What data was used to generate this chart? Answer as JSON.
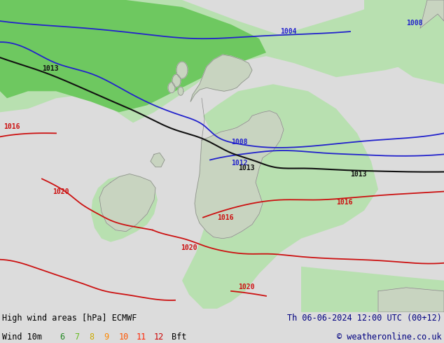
{
  "title_left": "High wind areas [hPa] ECMWF",
  "title_right": "Th 06-06-2024 12:00 UTC (00+12)",
  "subtitle_left": "Wind 10m",
  "subtitle_right": "© weatheronline.co.uk",
  "bg_color": "#dcdcdc",
  "land_color": "#c8d4c0",
  "land_edge": "#888888",
  "sea_color": "#dcdcdc",
  "green_light": "#b8e0b0",
  "green_medium": "#6ec860",
  "blue_line": "#2222cc",
  "black_line": "#111111",
  "red_line": "#cc1111",
  "wind_nums": [
    "6",
    "7",
    "8",
    "9",
    "10",
    "11",
    "12"
  ],
  "wind_colors": [
    "#228822",
    "#66bb22",
    "#ccaa00",
    "#ff8800",
    "#ff5500",
    "#ff2200",
    "#cc0000"
  ],
  "label_fontsize": 7,
  "footer_text_color": "#000080"
}
